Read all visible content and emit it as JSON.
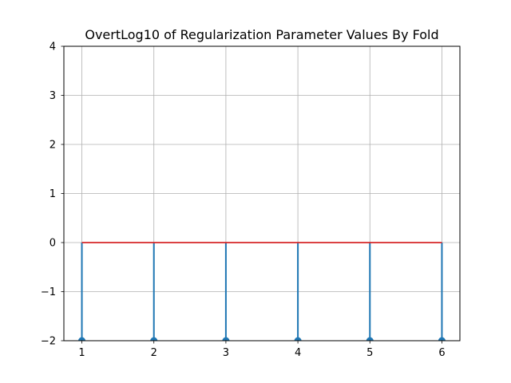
{
  "chart_data": {
    "type": "stem",
    "title": "OvertLog10 of Regularization Parameter Values By Fold",
    "xlabel": "",
    "ylabel": "",
    "x": [
      1,
      2,
      3,
      4,
      5,
      6
    ],
    "values": [
      -2,
      -2,
      -2,
      -2,
      -2,
      -2
    ],
    "baseline": 0,
    "xlim": [
      0.75,
      6.25
    ],
    "ylim": [
      -2,
      4
    ],
    "xticks": [
      "1",
      "2",
      "3",
      "4",
      "5",
      "6"
    ],
    "yticks": [
      "−2",
      "−1",
      "0",
      "1",
      "2",
      "3",
      "4"
    ],
    "ytick_values": [
      -2,
      -1,
      0,
      1,
      2,
      3,
      4
    ],
    "grid": true,
    "colors": {
      "stem": "#1f77b4",
      "baseline": "#d62728",
      "grid": "#b0b0b0",
      "axes": "#000000"
    }
  }
}
